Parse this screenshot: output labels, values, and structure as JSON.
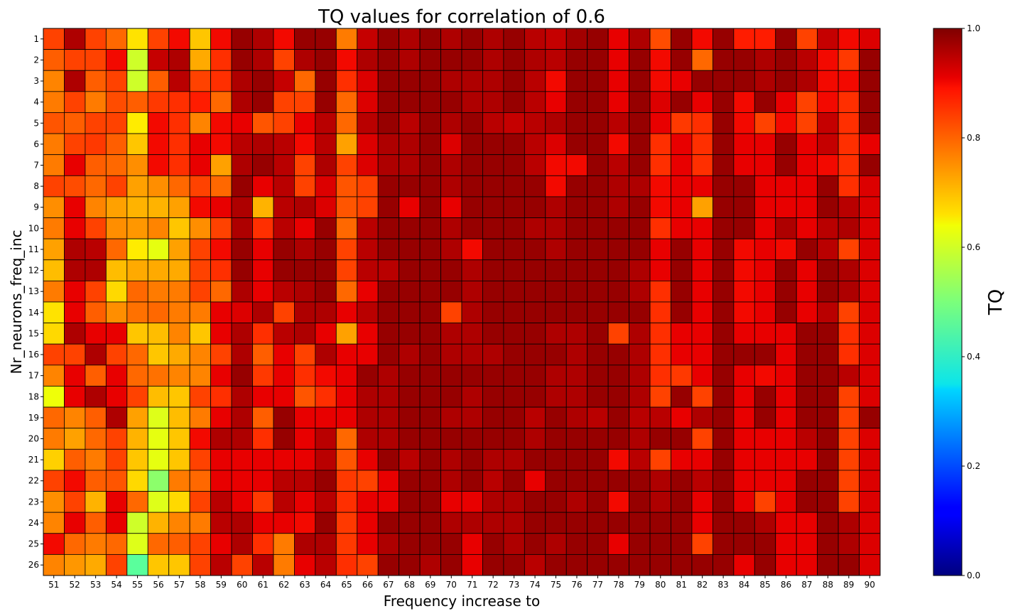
{
  "chart_data": {
    "type": "heatmap",
    "title": "TQ values for correlation of 0.6",
    "xlabel": "Frequency increase to",
    "ylabel": "Nr_neurons_freq_inc",
    "colorbar_label": "TQ",
    "colormap": "jet",
    "vmin": 0.0,
    "vmax": 1.0,
    "colorbar_ticks": [
      "0.0",
      "0.2",
      "0.4",
      "0.6",
      "0.8",
      "1.0"
    ],
    "x_categories": [
      "51",
      "52",
      "53",
      "54",
      "55",
      "56",
      "57",
      "58",
      "59",
      "60",
      "61",
      "62",
      "63",
      "64",
      "65",
      "66",
      "67",
      "68",
      "69",
      "70",
      "71",
      "72",
      "73",
      "74",
      "75",
      "76",
      "77",
      "78",
      "79",
      "80",
      "81",
      "82",
      "83",
      "84",
      "85",
      "86",
      "87",
      "88",
      "89",
      "90"
    ],
    "y_categories": [
      "1",
      "2",
      "3",
      "4",
      "5",
      "6",
      "7",
      "8",
      "9",
      "10",
      "11",
      "12",
      "13",
      "14",
      "15",
      "16",
      "17",
      "18",
      "19",
      "20",
      "21",
      "22",
      "23",
      "24",
      "25",
      "26"
    ],
    "values": [
      [
        0.84,
        0.96,
        0.84,
        0.8,
        0.67,
        0.84,
        0.9,
        0.7,
        0.9,
        0.98,
        0.96,
        0.9,
        0.98,
        0.98,
        0.78,
        0.94,
        0.98,
        0.96,
        0.98,
        0.96,
        0.98,
        0.96,
        0.98,
        0.95,
        0.94,
        0.97,
        0.98,
        0.91,
        0.96,
        0.83,
        0.98,
        0.9,
        0.98,
        0.88,
        0.88,
        0.98,
        0.84,
        0.94,
        0.9,
        0.92
      ],
      [
        0.81,
        0.84,
        0.84,
        0.9,
        0.6,
        0.94,
        0.96,
        0.73,
        0.86,
        0.98,
        0.96,
        0.84,
        0.96,
        0.98,
        0.9,
        0.96,
        0.98,
        0.96,
        0.98,
        0.98,
        0.98,
        0.96,
        0.98,
        0.96,
        0.95,
        0.98,
        0.98,
        0.91,
        0.98,
        0.9,
        0.98,
        0.8,
        0.98,
        0.98,
        0.96,
        0.98,
        0.95,
        0.9,
        0.85,
        0.98
      ],
      [
        0.77,
        0.96,
        0.81,
        0.84,
        0.6,
        0.81,
        0.95,
        0.84,
        0.86,
        0.96,
        0.98,
        0.94,
        0.8,
        0.98,
        0.86,
        0.92,
        0.98,
        0.98,
        0.98,
        0.96,
        0.96,
        0.96,
        0.98,
        0.95,
        0.9,
        0.98,
        0.98,
        0.91,
        0.98,
        0.9,
        0.91,
        0.98,
        0.98,
        0.98,
        0.96,
        0.98,
        0.96,
        0.9,
        0.9,
        0.98
      ],
      [
        0.78,
        0.84,
        0.78,
        0.83,
        0.81,
        0.85,
        0.86,
        0.88,
        0.8,
        0.96,
        0.98,
        0.84,
        0.84,
        0.98,
        0.8,
        0.92,
        0.98,
        0.98,
        0.98,
        0.98,
        0.96,
        0.96,
        0.98,
        0.95,
        0.91,
        0.98,
        0.98,
        0.91,
        0.98,
        0.92,
        0.98,
        0.91,
        0.98,
        0.9,
        0.98,
        0.91,
        0.84,
        0.9,
        0.86,
        0.98
      ],
      [
        0.82,
        0.81,
        0.84,
        0.84,
        0.66,
        0.9,
        0.86,
        0.77,
        0.9,
        0.91,
        0.82,
        0.84,
        0.91,
        0.95,
        0.8,
        0.95,
        0.98,
        0.95,
        0.98,
        0.96,
        0.98,
        0.95,
        0.94,
        0.95,
        0.96,
        0.98,
        0.98,
        0.95,
        0.98,
        0.91,
        0.85,
        0.86,
        0.98,
        0.9,
        0.84,
        0.9,
        0.84,
        0.94,
        0.86,
        0.98
      ],
      [
        0.78,
        0.84,
        0.85,
        0.81,
        0.7,
        0.9,
        0.86,
        0.91,
        0.9,
        0.95,
        0.96,
        0.95,
        0.9,
        0.95,
        0.74,
        0.92,
        0.96,
        0.96,
        0.98,
        0.92,
        0.98,
        0.98,
        0.98,
        0.95,
        0.92,
        0.98,
        0.98,
        0.9,
        0.98,
        0.86,
        0.91,
        0.86,
        0.98,
        0.91,
        0.91,
        0.98,
        0.91,
        0.94,
        0.86,
        0.91
      ],
      [
        0.78,
        0.91,
        0.81,
        0.8,
        0.76,
        0.9,
        0.86,
        0.91,
        0.74,
        0.96,
        0.98,
        0.95,
        0.84,
        0.96,
        0.84,
        0.92,
        0.96,
        0.96,
        0.98,
        0.96,
        0.98,
        0.98,
        0.98,
        0.95,
        0.9,
        0.9,
        0.98,
        0.95,
        0.98,
        0.86,
        0.91,
        0.86,
        0.98,
        0.91,
        0.91,
        0.98,
        0.91,
        0.9,
        0.86,
        0.98
      ],
      [
        0.84,
        0.83,
        0.8,
        0.84,
        0.74,
        0.76,
        0.8,
        0.84,
        0.8,
        0.98,
        0.91,
        0.95,
        0.84,
        0.92,
        0.82,
        0.84,
        0.98,
        0.98,
        0.98,
        0.96,
        0.98,
        0.98,
        0.98,
        0.98,
        0.9,
        0.98,
        0.98,
        0.96,
        0.96,
        0.9,
        0.91,
        0.91,
        0.98,
        0.98,
        0.91,
        0.91,
        0.91,
        0.98,
        0.86,
        0.92
      ],
      [
        0.76,
        0.91,
        0.77,
        0.74,
        0.72,
        0.72,
        0.74,
        0.9,
        0.91,
        0.96,
        0.72,
        0.95,
        0.96,
        0.92,
        0.82,
        0.84,
        0.98,
        0.91,
        0.98,
        0.91,
        0.98,
        0.98,
        0.98,
        0.98,
        0.96,
        0.98,
        0.98,
        0.96,
        0.98,
        0.9,
        0.91,
        0.74,
        0.98,
        0.98,
        0.91,
        0.91,
        0.91,
        0.98,
        0.95,
        0.92
      ],
      [
        0.78,
        0.91,
        0.84,
        0.76,
        0.75,
        0.77,
        0.7,
        0.76,
        0.84,
        0.96,
        0.86,
        0.95,
        0.91,
        0.98,
        0.8,
        0.95,
        0.98,
        0.98,
        0.98,
        0.96,
        0.98,
        0.98,
        0.98,
        0.96,
        0.96,
        0.98,
        0.98,
        0.98,
        0.98,
        0.86,
        0.91,
        0.91,
        0.98,
        0.98,
        0.91,
        0.96,
        0.91,
        0.95,
        0.96,
        0.92
      ],
      [
        0.74,
        0.96,
        0.95,
        0.8,
        0.66,
        0.63,
        0.74,
        0.84,
        0.9,
        0.98,
        0.91,
        0.98,
        0.96,
        0.98,
        0.84,
        0.95,
        0.98,
        0.98,
        0.98,
        0.96,
        0.9,
        0.98,
        0.98,
        0.98,
        0.96,
        0.98,
        0.98,
        0.98,
        0.98,
        0.91,
        0.98,
        0.91,
        0.98,
        0.9,
        0.91,
        0.9,
        0.98,
        0.95,
        0.84,
        0.92
      ],
      [
        0.71,
        0.96,
        0.96,
        0.71,
        0.73,
        0.73,
        0.73,
        0.84,
        0.86,
        0.98,
        0.91,
        0.98,
        0.98,
        0.98,
        0.84,
        0.95,
        0.95,
        0.98,
        0.98,
        0.98,
        0.96,
        0.98,
        0.98,
        0.98,
        0.98,
        0.98,
        0.98,
        0.98,
        0.96,
        0.91,
        0.98,
        0.91,
        0.98,
        0.9,
        0.91,
        0.98,
        0.91,
        0.98,
        0.96,
        0.92
      ],
      [
        0.78,
        0.91,
        0.84,
        0.68,
        0.8,
        0.78,
        0.78,
        0.84,
        0.8,
        0.96,
        0.91,
        0.95,
        0.96,
        0.98,
        0.8,
        0.91,
        0.98,
        0.98,
        0.98,
        0.98,
        0.96,
        0.98,
        0.98,
        0.98,
        0.98,
        0.98,
        0.98,
        0.98,
        0.96,
        0.86,
        0.98,
        0.91,
        0.98,
        0.9,
        0.91,
        0.98,
        0.91,
        0.98,
        0.96,
        0.92
      ],
      [
        0.67,
        0.91,
        0.81,
        0.76,
        0.79,
        0.8,
        0.78,
        0.78,
        0.91,
        0.92,
        0.96,
        0.84,
        0.96,
        0.96,
        0.91,
        0.95,
        0.98,
        0.98,
        0.98,
        0.84,
        0.96,
        0.98,
        0.98,
        0.98,
        0.98,
        0.98,
        0.98,
        0.98,
        0.98,
        0.86,
        0.98,
        0.91,
        0.98,
        0.9,
        0.91,
        0.98,
        0.91,
        0.95,
        0.84,
        0.92
      ],
      [
        0.68,
        0.96,
        0.91,
        0.91,
        0.7,
        0.71,
        0.77,
        0.7,
        0.91,
        0.96,
        0.86,
        0.95,
        0.96,
        0.91,
        0.74,
        0.91,
        0.98,
        0.98,
        0.98,
        0.96,
        0.96,
        0.98,
        0.98,
        0.98,
        0.96,
        0.96,
        0.98,
        0.84,
        0.96,
        0.86,
        0.91,
        0.91,
        0.98,
        0.91,
        0.91,
        0.91,
        0.98,
        0.98,
        0.86,
        0.92
      ],
      [
        0.84,
        0.84,
        0.96,
        0.84,
        0.8,
        0.7,
        0.73,
        0.77,
        0.84,
        0.96,
        0.81,
        0.91,
        0.84,
        0.96,
        0.91,
        0.91,
        0.98,
        0.96,
        0.98,
        0.96,
        0.96,
        0.96,
        0.98,
        0.98,
        0.98,
        0.96,
        0.98,
        0.98,
        0.96,
        0.86,
        0.91,
        0.91,
        0.98,
        0.98,
        0.98,
        0.91,
        0.98,
        0.98,
        0.86,
        0.92
      ],
      [
        0.77,
        0.91,
        0.81,
        0.91,
        0.8,
        0.79,
        0.77,
        0.77,
        0.91,
        0.98,
        0.85,
        0.91,
        0.86,
        0.9,
        0.91,
        0.98,
        0.96,
        0.98,
        0.98,
        0.98,
        0.98,
        0.98,
        0.98,
        0.98,
        0.96,
        0.96,
        0.98,
        0.98,
        0.96,
        0.86,
        0.85,
        0.91,
        0.98,
        0.91,
        0.9,
        0.91,
        0.98,
        0.98,
        0.95,
        0.92
      ],
      [
        0.64,
        0.91,
        0.96,
        0.91,
        0.84,
        0.71,
        0.7,
        0.84,
        0.86,
        0.96,
        0.91,
        0.91,
        0.82,
        0.86,
        0.91,
        0.96,
        0.96,
        0.98,
        0.98,
        0.98,
        0.96,
        0.98,
        0.98,
        0.98,
        0.96,
        0.96,
        0.98,
        0.98,
        0.96,
        0.84,
        0.98,
        0.84,
        0.98,
        0.91,
        0.98,
        0.91,
        0.98,
        0.98,
        0.84,
        0.92
      ],
      [
        0.8,
        0.77,
        0.81,
        0.96,
        0.74,
        0.62,
        0.71,
        0.78,
        0.91,
        0.96,
        0.81,
        0.98,
        0.91,
        0.91,
        0.91,
        0.96,
        0.96,
        0.98,
        0.98,
        0.96,
        0.96,
        0.98,
        0.98,
        0.95,
        0.98,
        0.96,
        0.95,
        0.98,
        0.95,
        0.95,
        0.91,
        0.96,
        0.98,
        0.91,
        0.98,
        0.91,
        0.98,
        0.98,
        0.84,
        0.98
      ],
      [
        0.78,
        0.74,
        0.8,
        0.84,
        0.72,
        0.63,
        0.7,
        0.9,
        0.96,
        0.96,
        0.86,
        0.98,
        0.91,
        0.95,
        0.8,
        0.96,
        0.96,
        0.98,
        0.98,
        0.98,
        0.98,
        0.98,
        0.98,
        0.96,
        0.98,
        0.98,
        0.98,
        0.98,
        0.96,
        0.98,
        0.98,
        0.84,
        0.98,
        0.91,
        0.91,
        0.91,
        0.95,
        0.98,
        0.84,
        0.92
      ],
      [
        0.69,
        0.81,
        0.78,
        0.84,
        0.7,
        0.63,
        0.7,
        0.84,
        0.91,
        0.91,
        0.91,
        0.91,
        0.91,
        0.95,
        0.82,
        0.91,
        0.98,
        0.95,
        0.98,
        0.96,
        0.98,
        0.96,
        0.96,
        0.98,
        0.98,
        0.98,
        0.98,
        0.9,
        0.95,
        0.84,
        0.91,
        0.91,
        0.98,
        0.91,
        0.91,
        0.91,
        0.91,
        0.98,
        0.84,
        0.92
      ],
      [
        0.84,
        0.9,
        0.81,
        0.82,
        0.68,
        0.52,
        0.78,
        0.8,
        0.91,
        0.91,
        0.91,
        0.95,
        0.95,
        0.98,
        0.85,
        0.84,
        0.91,
        0.98,
        0.98,
        0.96,
        0.98,
        0.95,
        0.98,
        0.91,
        0.98,
        0.98,
        0.98,
        0.98,
        0.98,
        0.96,
        0.98,
        0.95,
        0.98,
        0.91,
        0.91,
        0.91,
        0.98,
        0.98,
        0.84,
        0.92
      ],
      [
        0.76,
        0.84,
        0.72,
        0.91,
        0.8,
        0.62,
        0.68,
        0.84,
        0.95,
        0.91,
        0.85,
        0.95,
        0.91,
        0.95,
        0.86,
        0.91,
        0.91,
        0.98,
        0.98,
        0.91,
        0.91,
        0.96,
        0.96,
        0.98,
        0.98,
        0.96,
        0.98,
        0.9,
        0.98,
        0.96,
        0.98,
        0.91,
        0.98,
        0.91,
        0.84,
        0.91,
        0.98,
        0.98,
        0.84,
        0.92
      ],
      [
        0.77,
        0.91,
        0.81,
        0.91,
        0.6,
        0.72,
        0.77,
        0.78,
        0.95,
        0.96,
        0.91,
        0.91,
        0.9,
        0.98,
        0.85,
        0.91,
        0.98,
        0.98,
        0.98,
        0.96,
        0.96,
        0.96,
        0.96,
        0.98,
        0.98,
        0.98,
        0.98,
        0.98,
        0.98,
        0.98,
        0.98,
        0.91,
        0.98,
        0.98,
        0.96,
        0.91,
        0.91,
        0.98,
        0.96,
        0.92
      ],
      [
        0.9,
        0.8,
        0.78,
        0.8,
        0.62,
        0.8,
        0.81,
        0.84,
        0.91,
        0.96,
        0.86,
        0.78,
        0.96,
        0.96,
        0.85,
        0.91,
        0.96,
        0.98,
        0.98,
        0.98,
        0.91,
        0.98,
        0.96,
        0.98,
        0.96,
        0.98,
        0.98,
        0.91,
        0.98,
        0.98,
        0.98,
        0.84,
        0.98,
        0.98,
        0.98,
        0.91,
        0.91,
        0.98,
        0.96,
        0.92
      ],
      [
        0.77,
        0.75,
        0.73,
        0.84,
        0.46,
        0.7,
        0.7,
        0.84,
        0.95,
        0.84,
        0.95,
        0.78,
        0.91,
        0.95,
        0.86,
        0.84,
        0.98,
        0.98,
        0.96,
        0.98,
        0.91,
        0.98,
        0.98,
        0.95,
        0.98,
        0.98,
        0.98,
        0.98,
        0.98,
        0.98,
        0.98,
        0.98,
        0.98,
        0.91,
        0.98,
        0.91,
        0.91,
        0.98,
        0.98,
        0.92
      ]
    ]
  }
}
